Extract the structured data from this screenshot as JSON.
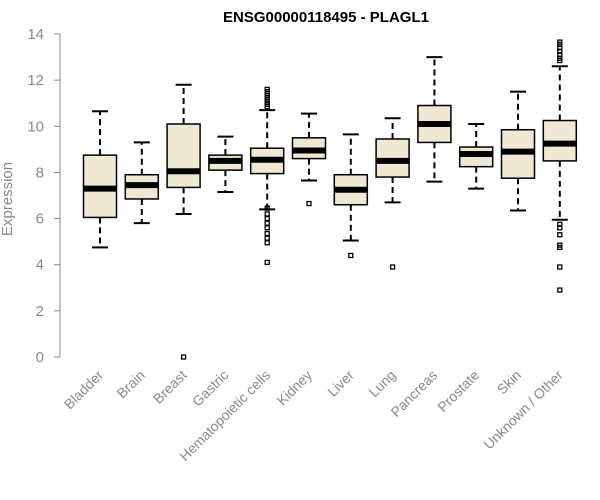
{
  "chart_data": {
    "type": "box",
    "title": "ENSG00000118495 - PLAGL1",
    "ylabel": "Expression",
    "xlabel": "",
    "ylim": [
      0,
      14
    ],
    "yticks": [
      0,
      2,
      4,
      6,
      8,
      10,
      12,
      14
    ],
    "grid": false,
    "legend": "none",
    "colors": {
      "box_fill": "#efe8d3",
      "stroke": "#000000",
      "median": "#000000",
      "axis_text": "#8a8a8a"
    },
    "categories": [
      "Bladder",
      "Brain",
      "Breast",
      "Gastric",
      "Hematopoietic cells",
      "Kidney",
      "Liver",
      "Lung",
      "Pancreas",
      "Prostate",
      "Skin",
      "Unknown / Other"
    ],
    "boxes": [
      {
        "category": "Bladder",
        "whisker_low": 4.75,
        "q1": 6.05,
        "median": 7.3,
        "q3": 8.75,
        "whisker_high": 10.65,
        "outliers": []
      },
      {
        "category": "Brain",
        "whisker_low": 5.8,
        "q1": 6.85,
        "median": 7.45,
        "q3": 7.9,
        "whisker_high": 9.3,
        "outliers": []
      },
      {
        "category": "Breast",
        "whisker_low": 6.2,
        "q1": 7.35,
        "median": 8.05,
        "q3": 10.1,
        "whisker_high": 11.8,
        "outliers": [
          0.0
        ]
      },
      {
        "category": "Gastric",
        "whisker_low": 7.15,
        "q1": 8.1,
        "median": 8.5,
        "q3": 8.75,
        "whisker_high": 9.55,
        "outliers": []
      },
      {
        "category": "Hematopoietic cells",
        "whisker_low": 6.4,
        "q1": 7.95,
        "median": 8.55,
        "q3": 9.05,
        "whisker_high": 10.7,
        "outliers": [
          4.1,
          4.95,
          5.15,
          5.35,
          5.6,
          5.8,
          6.0,
          6.2,
          6.45,
          10.85,
          10.95,
          11.05,
          11.15,
          11.25,
          11.35,
          11.5,
          11.6
        ]
      },
      {
        "category": "Kidney",
        "whisker_low": 7.65,
        "q1": 8.6,
        "median": 8.95,
        "q3": 9.5,
        "whisker_high": 10.55,
        "outliers": [
          6.65
        ]
      },
      {
        "category": "Liver",
        "whisker_low": 5.05,
        "q1": 6.6,
        "median": 7.25,
        "q3": 7.9,
        "whisker_high": 9.65,
        "outliers": [
          4.4
        ]
      },
      {
        "category": "Lung",
        "whisker_low": 6.7,
        "q1": 7.8,
        "median": 8.5,
        "q3": 9.45,
        "whisker_high": 10.35,
        "outliers": [
          3.9
        ]
      },
      {
        "category": "Pancreas",
        "whisker_low": 7.6,
        "q1": 9.3,
        "median": 10.1,
        "q3": 10.9,
        "whisker_high": 13.0,
        "outliers": []
      },
      {
        "category": "Prostate",
        "whisker_low": 7.3,
        "q1": 8.25,
        "median": 8.8,
        "q3": 9.1,
        "whisker_high": 10.1,
        "outliers": []
      },
      {
        "category": "Skin",
        "whisker_low": 6.35,
        "q1": 7.75,
        "median": 8.9,
        "q3": 9.85,
        "whisker_high": 11.5,
        "outliers": []
      },
      {
        "category": "Unknown / Other",
        "whisker_low": 5.95,
        "q1": 8.5,
        "median": 9.25,
        "q3": 10.25,
        "whisker_high": 12.6,
        "outliers": [
          2.9,
          3.9,
          4.75,
          4.85,
          5.3,
          5.6,
          5.75,
          12.85,
          12.95,
          13.1,
          13.25,
          13.4,
          13.55,
          13.65
        ]
      }
    ]
  }
}
